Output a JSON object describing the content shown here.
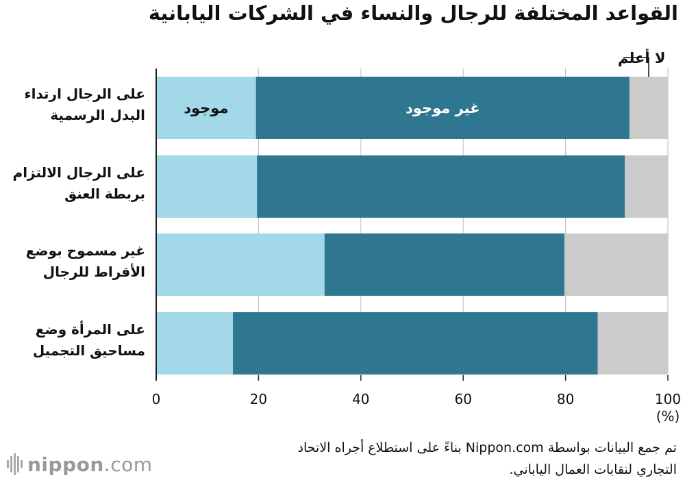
{
  "title": "القواعد المختلفة للرجال والنساء في الشركات اليابانية",
  "source_line1": "تم جمع البيانات بواسطة Nippon.com بناءً على استطلاع أجراه الاتحاد",
  "source_line2": "التجاري لنقابات العمال الياباني.",
  "logo": {
    "brand": "nippon",
    "suffix": ".com"
  },
  "colors": {
    "exists": "#a2d8e8",
    "not_exists": "#2f7791",
    "dont_know": "#cbcbcb",
    "axis": "#222222"
  },
  "chart_data": {
    "type": "bar",
    "orientation": "horizontal",
    "stacked": true,
    "categories": [
      "على الرجال ارتداء البدل الرسمية",
      "على الرجال الالتزام بربطة العنق",
      "غير مسموح بوضع الأقراط للرجال",
      "على المرأة وضع مساحيق التجميل"
    ],
    "category_lines": [
      [
        "على الرجال ارتداء",
        "البدل الرسمية"
      ],
      [
        "على الرجال الالتزام",
        "بربطة العنق"
      ],
      [
        "غير مسموح بوضع",
        "الأقراط للرجال"
      ],
      [
        "على المرأة وضع",
        "مساحيق التجميل"
      ]
    ],
    "series": [
      {
        "name": "موجود",
        "values": [
          19.5,
          19.7,
          32.9,
          15.0
        ]
      },
      {
        "name": "غير موجود",
        "values": [
          73.0,
          71.9,
          46.9,
          71.3
        ]
      },
      {
        "name": "لا أعلم",
        "values": [
          7.5,
          8.4,
          20.2,
          13.7
        ]
      }
    ],
    "xlim": [
      0,
      100
    ],
    "xticks": [
      "0",
      "20",
      "40",
      "60",
      "80",
      "100"
    ],
    "xunit": "(%)",
    "grid": true
  }
}
